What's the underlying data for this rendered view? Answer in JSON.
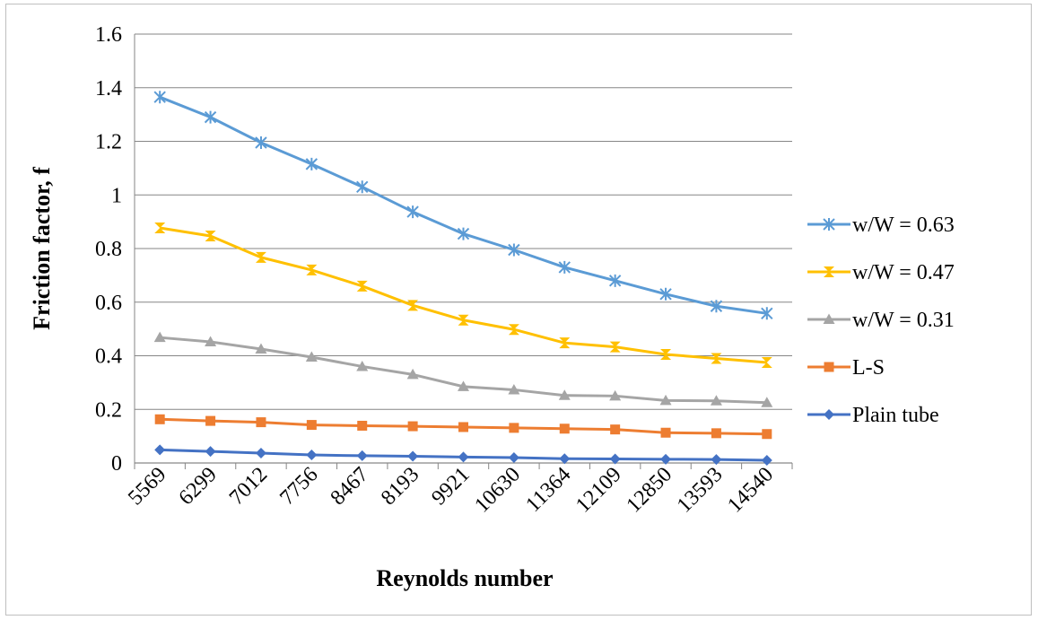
{
  "chart_data": {
    "type": "line",
    "title": "",
    "xlabel": "Reynolds number",
    "ylabel": "Friction factor, f",
    "categories": [
      "5569",
      "6299",
      "7012",
      "7756",
      "8467",
      "8193",
      "9921",
      "10630",
      "11364",
      "12109",
      "12850",
      "13593",
      "14540"
    ],
    "ylim": [
      0,
      1.6
    ],
    "yticks": [
      "0",
      "0.2",
      "0.4",
      "0.6",
      "0.8",
      "1",
      "1.2",
      "1.4",
      "1.6"
    ],
    "ytick_values": [
      0,
      0.2,
      0.4,
      0.6,
      0.8,
      1.0,
      1.2,
      1.4,
      1.6
    ],
    "grid": true,
    "legend_position": "right",
    "series": [
      {
        "name": "w/W = 0.63",
        "color": "#5b9bd5",
        "marker": "star",
        "values": [
          1.365,
          1.29,
          1.195,
          1.115,
          1.03,
          0.937,
          0.855,
          0.795,
          0.73,
          0.68,
          0.63,
          0.585,
          0.558
        ]
      },
      {
        "name": "w/W = 0.47",
        "color": "#ffc000",
        "marker": "hourglass",
        "values": [
          0.877,
          0.847,
          0.767,
          0.72,
          0.66,
          0.588,
          0.533,
          0.498,
          0.448,
          0.433,
          0.405,
          0.39,
          0.375
        ]
      },
      {
        "name": "w/W = 0.31",
        "color": "#a5a5a5",
        "marker": "triangle",
        "values": [
          0.468,
          0.452,
          0.425,
          0.395,
          0.36,
          0.33,
          0.285,
          0.273,
          0.252,
          0.25,
          0.233,
          0.232,
          0.225
        ]
      },
      {
        "name": "L-S",
        "color": "#ed7d31",
        "marker": "square",
        "values": [
          0.163,
          0.157,
          0.152,
          0.142,
          0.139,
          0.137,
          0.134,
          0.131,
          0.128,
          0.125,
          0.113,
          0.111,
          0.108
        ]
      },
      {
        "name": "Plain tube",
        "color": "#4472c4",
        "marker": "diamond",
        "values": [
          0.049,
          0.043,
          0.037,
          0.03,
          0.027,
          0.025,
          0.022,
          0.02,
          0.016,
          0.015,
          0.014,
          0.013,
          0.01
        ]
      }
    ]
  }
}
